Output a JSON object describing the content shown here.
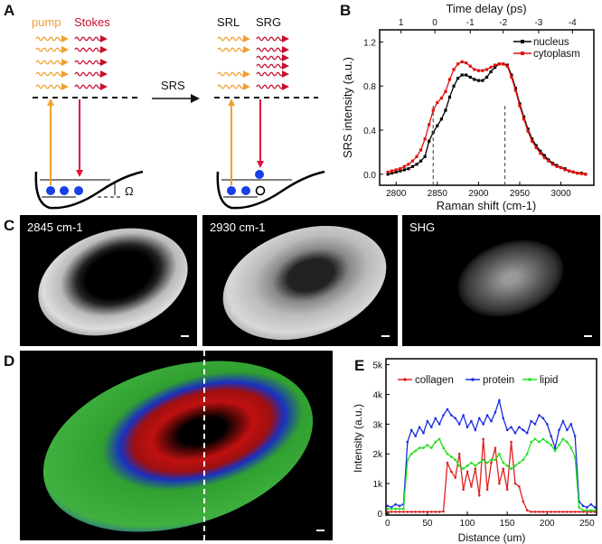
{
  "panels": {
    "a": "A",
    "b": "B",
    "c": "C",
    "d": "D",
    "e": "E"
  },
  "diagram": {
    "pump": "pump",
    "stokes": "Stokes",
    "srs": "SRS",
    "srl": "SRL",
    "srg": "SRG",
    "omega": "Ω",
    "colors": {
      "pump": "#f0a030",
      "stokes": "#c8102e",
      "dot": "#1a3fe6"
    }
  },
  "images": [
    {
      "label": "2845 cm-1"
    },
    {
      "label": "2930 cm-1"
    },
    {
      "label": "SHG"
    }
  ],
  "chart_data": [
    {
      "type": "line",
      "xlabel": "Raman shift (cm-1)",
      "ylabel": "SRS intensity (a.u.)",
      "top_xlabel": "Time delay (ps)",
      "xlim": [
        2780,
        3040
      ],
      "ylim": [
        -0.1,
        1.31
      ],
      "xticks": [
        2800,
        2850,
        2900,
        2950,
        3000
      ],
      "yticks": [
        "0.0",
        "0.4",
        "0.8",
        "1.2"
      ],
      "top_ticks": [
        {
          "label": "1",
          "raman": 2806
        },
        {
          "label": "0",
          "raman": 2847
        },
        {
          "label": "-1",
          "raman": 2890
        },
        {
          "label": "-2",
          "raman": 2930
        },
        {
          "label": "-3",
          "raman": 2973
        },
        {
          "label": "-4",
          "raman": 3014
        }
      ],
      "vlines": [
        2845,
        2932
      ],
      "legend": "top-right",
      "x": [
        2790,
        2795,
        2800,
        2805,
        2810,
        2815,
        2820,
        2825,
        2830,
        2835,
        2840,
        2845,
        2850,
        2855,
        2860,
        2865,
        2870,
        2875,
        2880,
        2885,
        2890,
        2895,
        2900,
        2905,
        2910,
        2915,
        2920,
        2925,
        2930,
        2935,
        2940,
        2945,
        2950,
        2955,
        2960,
        2965,
        2970,
        2975,
        2980,
        2985,
        2990,
        2995,
        3000,
        3005,
        3010,
        3015,
        3020,
        3025,
        3030
      ],
      "series": [
        {
          "name": "nucleus",
          "color": "#000000",
          "values": [
            0.0,
            0.01,
            0.02,
            0.03,
            0.04,
            0.05,
            0.07,
            0.09,
            0.12,
            0.16,
            0.3,
            0.38,
            0.44,
            0.5,
            0.58,
            0.7,
            0.8,
            0.87,
            0.9,
            0.9,
            0.88,
            0.86,
            0.85,
            0.85,
            0.88,
            0.93,
            0.97,
            1.0,
            1.0,
            0.99,
            0.9,
            0.78,
            0.64,
            0.52,
            0.41,
            0.32,
            0.26,
            0.21,
            0.17,
            0.13,
            0.1,
            0.08,
            0.06,
            0.05,
            0.03,
            0.02,
            0.01,
            0.01,
            0.0
          ]
        },
        {
          "name": "cytoplasm",
          "color": "#e01010",
          "values": [
            0.02,
            0.03,
            0.04,
            0.05,
            0.07,
            0.09,
            0.12,
            0.16,
            0.22,
            0.32,
            0.45,
            0.58,
            0.65,
            0.69,
            0.75,
            0.86,
            0.95,
            1.0,
            1.02,
            1.01,
            0.98,
            0.95,
            0.94,
            0.94,
            0.95,
            0.97,
            0.99,
            1.0,
            1.0,
            0.98,
            0.88,
            0.76,
            0.62,
            0.5,
            0.39,
            0.3,
            0.24,
            0.19,
            0.15,
            0.12,
            0.09,
            0.07,
            0.06,
            0.04,
            0.03,
            0.02,
            0.01,
            0.005,
            0.0
          ]
        }
      ]
    },
    {
      "type": "line",
      "xlabel": "Distance (um)",
      "ylabel": "Intensity  (a.u.)",
      "xlim": [
        -2,
        262
      ],
      "ylim": [
        -60,
        5200
      ],
      "xticks": [
        0,
        50,
        100,
        150,
        200,
        250
      ],
      "yticks": [
        {
          "v": 0,
          "label": "0"
        },
        {
          "v": 1000,
          "label": "1k"
        },
        {
          "v": 2000,
          "label": "2k"
        },
        {
          "v": 3000,
          "label": "3k"
        },
        {
          "v": 4000,
          "label": "4k"
        },
        {
          "v": 5000,
          "label": "5k"
        }
      ],
      "legend": "top",
      "x": [
        0,
        5,
        10,
        15,
        20,
        25,
        30,
        35,
        40,
        45,
        50,
        55,
        60,
        65,
        70,
        75,
        80,
        85,
        90,
        95,
        100,
        105,
        110,
        115,
        120,
        125,
        130,
        135,
        140,
        145,
        150,
        155,
        160,
        165,
        170,
        175,
        180,
        185,
        190,
        195,
        200,
        205,
        210,
        215,
        220,
        225,
        230,
        235,
        240,
        245,
        250,
        255,
        260
      ],
      "series": [
        {
          "name": "collagen",
          "color": "#e02020",
          "values": [
            50,
            50,
            50,
            50,
            50,
            50,
            50,
            50,
            50,
            50,
            50,
            50,
            50,
            50,
            60,
            1700,
            1400,
            1200,
            2000,
            800,
            1400,
            900,
            1500,
            600,
            2500,
            800,
            1700,
            2200,
            1000,
            1500,
            800,
            2400,
            1000,
            900,
            400,
            100,
            50,
            50,
            50,
            50,
            50,
            50,
            50,
            50,
            50,
            50,
            50,
            50,
            50,
            50,
            50,
            50,
            50
          ]
        },
        {
          "name": "protein",
          "color": "#1a2ee0",
          "values": [
            250,
            200,
            300,
            250,
            300,
            2400,
            2800,
            2600,
            2900,
            2700,
            3100,
            2900,
            3200,
            3000,
            3300,
            3500,
            3300,
            3200,
            3000,
            3300,
            2900,
            3100,
            2800,
            3200,
            3000,
            3300,
            3100,
            3400,
            3800,
            3200,
            2800,
            2900,
            2700,
            2900,
            2800,
            2700,
            3100,
            3000,
            3300,
            3200,
            3000,
            2600,
            2200,
            2800,
            3100,
            2800,
            3000,
            2600,
            400,
            250,
            200,
            300,
            200
          ]
        },
        {
          "name": "lipid",
          "color": "#20e020",
          "values": [
            150,
            150,
            150,
            150,
            150,
            1800,
            2000,
            2100,
            2200,
            2200,
            2300,
            2200,
            2400,
            2500,
            2200,
            2000,
            1900,
            1800,
            1600,
            1500,
            1600,
            1700,
            1600,
            1700,
            1800,
            1700,
            1800,
            1800,
            2000,
            1700,
            1600,
            1500,
            1600,
            1700,
            1800,
            2000,
            2400,
            2500,
            2400,
            2500,
            2400,
            2300,
            2100,
            2300,
            2500,
            2400,
            2200,
            1900,
            200,
            100,
            100,
            100,
            100
          ]
        }
      ]
    }
  ]
}
